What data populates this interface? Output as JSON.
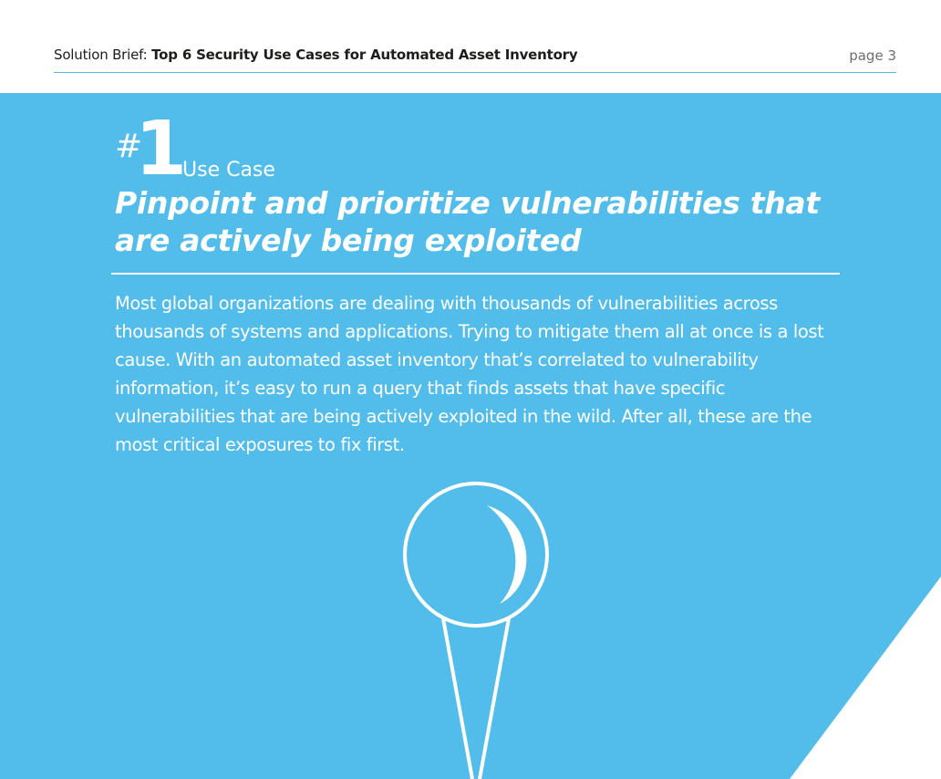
{
  "header": {
    "prefix": "Solution Brief: ",
    "title": "Top 6 Security Use Cases for Automated Asset Inventory",
    "page": "page 3"
  },
  "use_case": {
    "hash": "#",
    "number": "1",
    "label": "Use Case",
    "headline": "Pinpoint and prioritize vulnerabilities that are actively being exploited",
    "body": "Most global organizations are dealing with thousands of vulnerabilities across thousands of systems and applications. Trying to mitigate them all at once is a lost cause. With an automated asset inventory that’s correlated to vulnerability information, it’s easy to run a query that finds assets that have specific vulnerabilities that are being actively exploited in the wild. After all, these are the most critical exposures to fix first."
  },
  "illustration": {
    "icon": "push-pin-icon"
  },
  "colors": {
    "panel": "#52bdeb",
    "rule": "#4fb8e8",
    "text_dark": "#1d1d1b",
    "text_gray": "#6d6e71",
    "white": "#ffffff"
  }
}
